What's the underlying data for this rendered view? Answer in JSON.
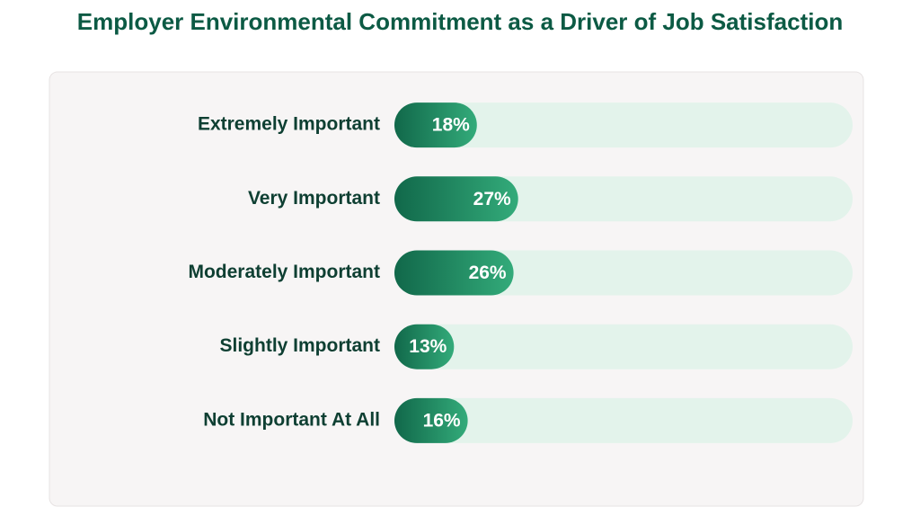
{
  "chart_data": {
    "type": "bar",
    "orientation": "horizontal",
    "title": "Employer Environmental Commitment as a Driver of Job Satisfaction",
    "categories": [
      "Extremely Important",
      "Very Important",
      "Moderately Important",
      "Slightly Important",
      "Not Important At All"
    ],
    "values": [
      18,
      27,
      26,
      13,
      16
    ],
    "value_labels": [
      "18%",
      "27%",
      "26%",
      "13%",
      "16%"
    ],
    "color": "#1a7f5a",
    "xlim": [
      0,
      100
    ]
  }
}
